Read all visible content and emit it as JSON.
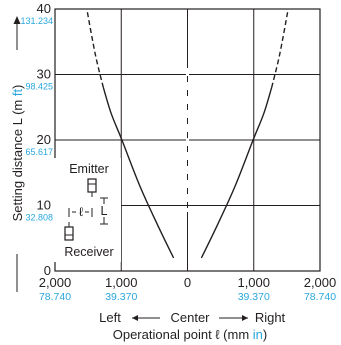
{
  "chart_data": {
    "type": "line",
    "x_ticks": [
      {
        "value": -2000,
        "label": "2,000",
        "in_label": "78.740"
      },
      {
        "value": -1000,
        "label": "1,000",
        "in_label": "39.370"
      },
      {
        "value": 0,
        "label": "0",
        "in_label": ""
      },
      {
        "value": 1000,
        "label": "1,000",
        "in_label": "39.370"
      },
      {
        "value": 2000,
        "label": "2,000",
        "in_label": "78.740"
      }
    ],
    "y_ticks": [
      {
        "value": 0,
        "label": "0",
        "ft_label": ""
      },
      {
        "value": 10,
        "label": "10",
        "ft_label": "32.808"
      },
      {
        "value": 20,
        "label": "20",
        "ft_label": "65.617"
      },
      {
        "value": 30,
        "label": "30",
        "ft_label": "98.425"
      },
      {
        "value": 40,
        "label": "40",
        "ft_label": "131.234"
      }
    ],
    "xlim": [
      -2000,
      2000
    ],
    "ylim": [
      0,
      40
    ],
    "grid": true,
    "xlabel": {
      "left": "Left",
      "center": "Center",
      "right": "Right",
      "line2_main": "Operational point ℓ (mm ",
      "line2_unit": "in",
      "line2_end": ")"
    },
    "ylabel": {
      "main": "Setting distance L (m ",
      "unit": "ft",
      "end": ")"
    },
    "series": [
      {
        "solid": [
          [
            -210,
            2
          ],
          [
            -450,
            7
          ],
          [
            -720,
            13
          ],
          [
            -990,
            20
          ],
          [
            -1150,
            24
          ],
          [
            -1270,
            28
          ]
        ],
        "dashed": [
          [
            -1270,
            28
          ],
          [
            -1390,
            33
          ],
          [
            -1520,
            40
          ]
        ]
      },
      {
        "solid": [
          [
            210,
            2
          ],
          [
            450,
            7
          ],
          [
            720,
            13
          ],
          [
            990,
            20
          ],
          [
            1150,
            24
          ],
          [
            1270,
            28
          ]
        ],
        "dashed": [
          [
            1270,
            28
          ],
          [
            1390,
            33
          ],
          [
            1520,
            40
          ]
        ]
      }
    ],
    "inset": {
      "emitter": "Emitter",
      "receiver": "Receiver",
      "dim_l": "L",
      "dim_ell": "ℓ"
    },
    "colors": {
      "line": "#231f20",
      "accent": "#2aa7df"
    }
  }
}
